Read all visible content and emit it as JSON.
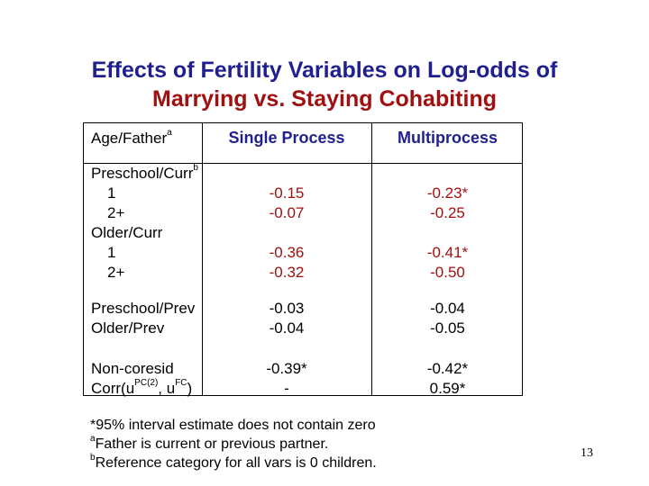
{
  "title": {
    "line1": "Effects of Fertility Variables on Log-odds of",
    "line2": "Marrying vs. Staying Cohabiting"
  },
  "table": {
    "header": {
      "rowlabel": "Age/Father",
      "rowlabel_sup": "a",
      "col1": "Single Process",
      "col2": "Multiprocess"
    },
    "rows": [
      {
        "label": "Preschool/Curr",
        "sup": "b",
        "single": "",
        "multi": ""
      },
      {
        "label": "1",
        "single": "-0.15",
        "multi": "-0.23*"
      },
      {
        "label": "2+",
        "single": "-0.07",
        "multi": "-0.25"
      },
      {
        "label": "Older/Curr",
        "single": "",
        "multi": ""
      },
      {
        "label": "1",
        "single": "-0.36",
        "multi": "-0.41*"
      },
      {
        "label": "2+",
        "single": "-0.32",
        "multi": "-0.50"
      },
      {
        "label": "Preschool/Prev",
        "single": "-0.03",
        "multi": "-0.04"
      },
      {
        "label": "Older/Prev",
        "single": "-0.04",
        "multi": "-0.05"
      },
      {
        "label": "Non-coresid",
        "single": "-0.39*",
        "multi": "-0.42*"
      },
      {
        "label": "Corr(u",
        "sup1": "PC(2)",
        "mid": ", u",
        "sup2": "FC",
        "end": ")",
        "single": "-",
        "multi": "0.59*"
      }
    ]
  },
  "notes": {
    "n1": "*95% interval estimate does not contain zero",
    "n2_sup": "a",
    "n2": "Father is current or previous partner.",
    "n3_sup": "b",
    "n3": "Reference category for all vars is 0 children."
  },
  "page_number": "13",
  "colors": {
    "title_blue": "#1f1f8f",
    "title_red": "#a01010"
  }
}
